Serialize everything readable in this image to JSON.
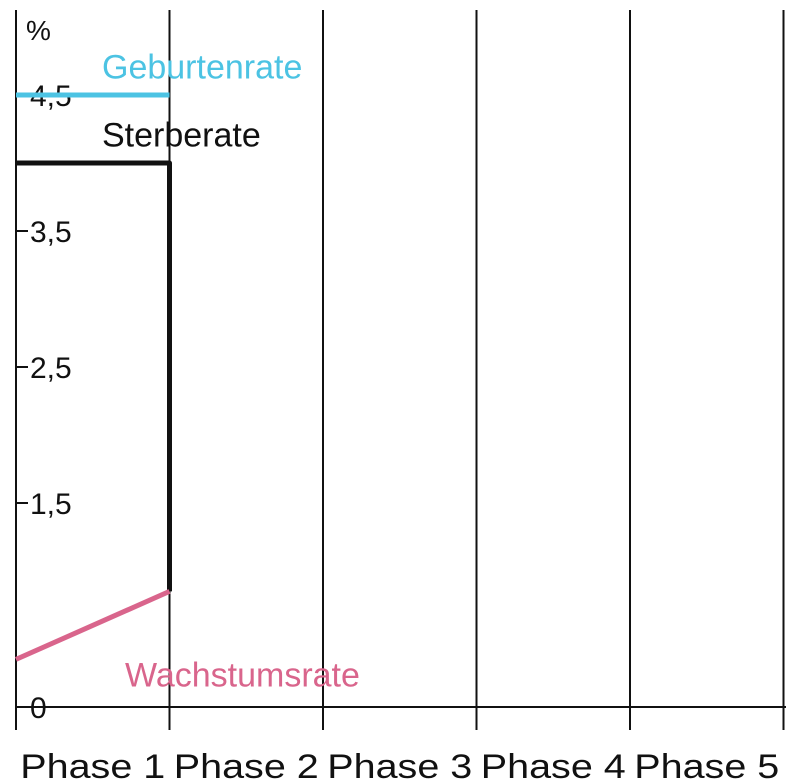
{
  "chart_data": {
    "type": "line",
    "unit": "%",
    "y_ticks": [
      "4,5",
      "3,5",
      "2,5",
      "1,5",
      "0"
    ],
    "y_tick_values": [
      4.5,
      3.5,
      2.5,
      1.5,
      0
    ],
    "ylim": [
      0,
      4.5
    ],
    "categories": [
      "Phase 1",
      "Phase 2",
      "Phase 3",
      "Phase 4",
      "Phase 5"
    ],
    "grid": true,
    "series": [
      {
        "name": "Geburtenrate",
        "color": "#4cc3e3",
        "points": [
          [
            0,
            4.5
          ],
          [
            1,
            4.5
          ]
        ]
      },
      {
        "name": "Sterberate",
        "color": "#111111",
        "points": [
          [
            0,
            4.0
          ],
          [
            1,
            4.0
          ],
          [
            1,
            0.85
          ]
        ]
      },
      {
        "name": "Wachstumsrate",
        "color": "#d9658c",
        "points": [
          [
            0,
            0.35
          ],
          [
            1,
            0.85
          ]
        ]
      }
    ]
  }
}
